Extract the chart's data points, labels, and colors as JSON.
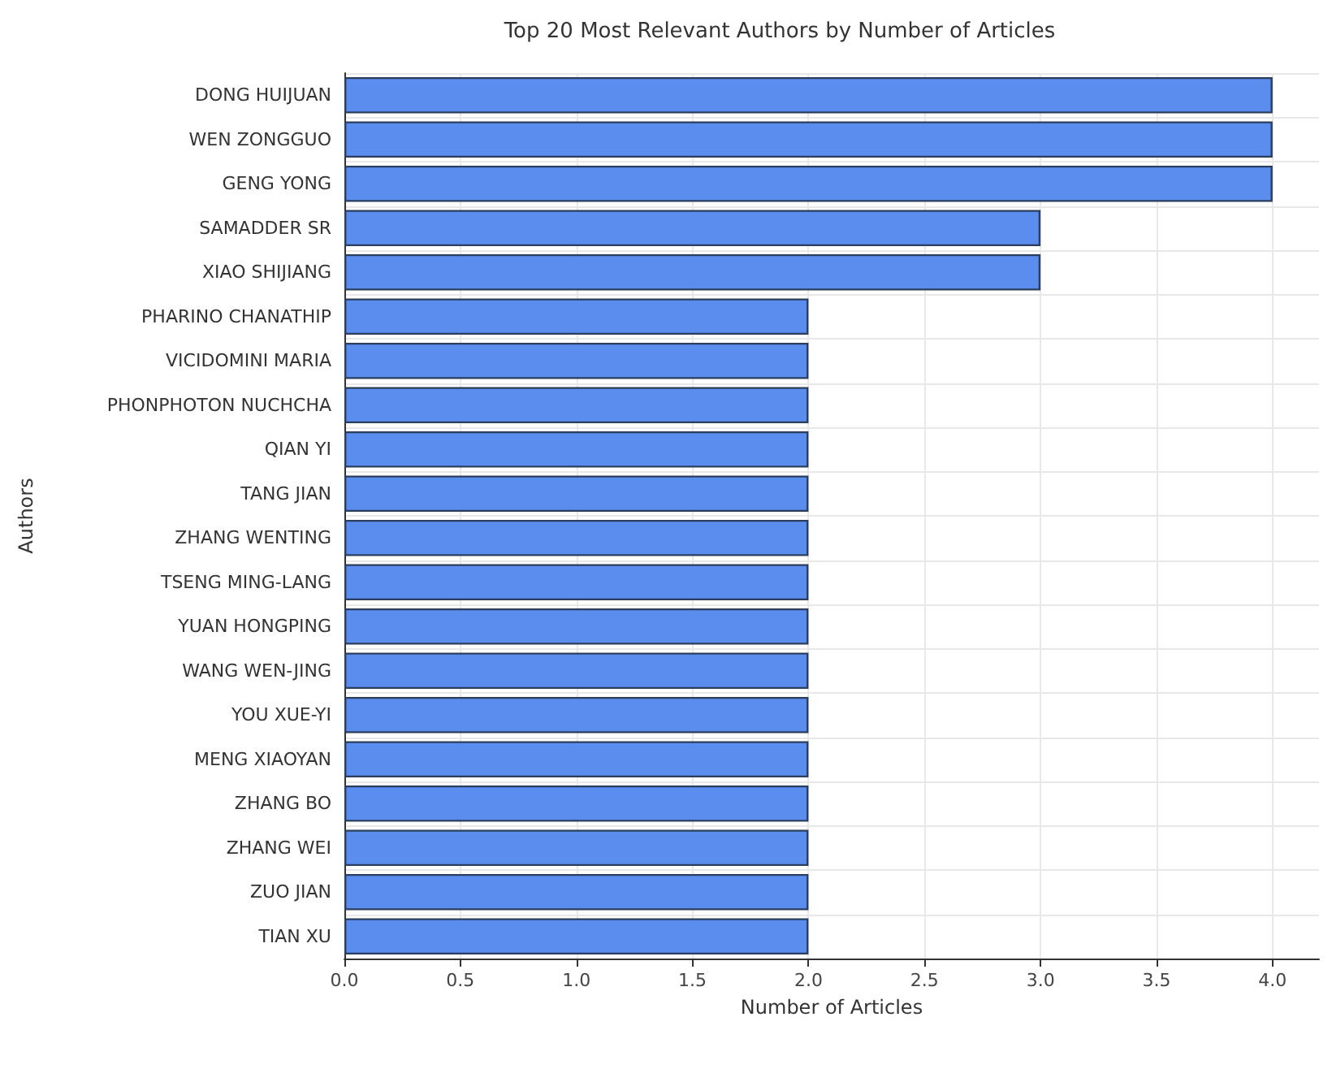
{
  "chart_data": {
    "type": "bar",
    "orientation": "horizontal",
    "title": "Top 20 Most Relevant Authors by Number of Articles",
    "xlabel": "Number of Articles",
    "ylabel": "Authors",
    "categories": [
      "DONG HUIJUAN",
      "WEN ZONGGUO",
      "GENG YONG",
      "SAMADDER SR",
      "XIAO SHIJIANG",
      "PHARINO CHANATHIP",
      "VICIDOMINI MARIA",
      "PHONPHOTON NUCHCHA",
      "QIAN YI",
      "TANG JIAN",
      "ZHANG WENTING",
      "TSENG MING-LANG",
      "YUAN HONGPING",
      "WANG WEN-JING",
      "YOU XUE-YI",
      "MENG XIAOYAN",
      "ZHANG BO",
      "ZHANG WEI",
      "ZUO JIAN",
      "TIAN XU"
    ],
    "values": [
      4,
      4,
      4,
      3,
      3,
      2,
      2,
      2,
      2,
      2,
      2,
      2,
      2,
      2,
      2,
      2,
      2,
      2,
      2,
      2
    ],
    "color": "#5b8def",
    "xlim": [
      0,
      4.2
    ],
    "xticks": [
      {
        "value": 0,
        "label": "0.0"
      },
      {
        "value": 0.5,
        "label": "0.5"
      },
      {
        "value": 1,
        "label": "1.0"
      },
      {
        "value": 1.5,
        "label": "1.5"
      },
      {
        "value": 2,
        "label": "2.0"
      },
      {
        "value": 2.5,
        "label": "2.5"
      },
      {
        "value": 3,
        "label": "3.0"
      },
      {
        "value": 3.5,
        "label": "3.5"
      },
      {
        "value": 4,
        "label": "4.0"
      }
    ],
    "grid": true
  }
}
